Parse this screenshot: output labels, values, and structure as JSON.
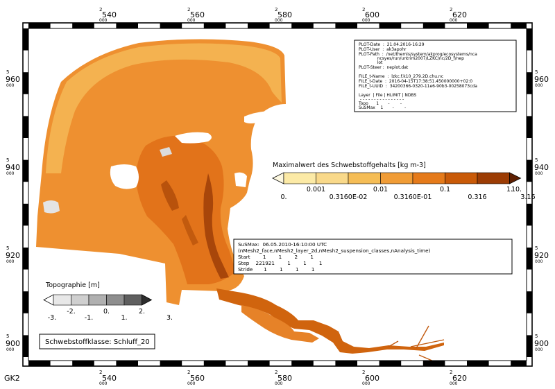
{
  "map": {
    "corner_label": "GK2",
    "x_ticks": [
      {
        "prefix": "2",
        "value": "540",
        "suffix": "000"
      },
      {
        "prefix": "2",
        "value": "560",
        "suffix": "000"
      },
      {
        "prefix": "2",
        "value": "580",
        "suffix": "000"
      },
      {
        "prefix": "2",
        "value": "600",
        "suffix": "000"
      },
      {
        "prefix": "2",
        "value": "620",
        "suffix": "000"
      }
    ],
    "y_ticks": [
      {
        "prefix": "5",
        "value": "960",
        "suffix": "000"
      },
      {
        "prefix": "5",
        "value": "940",
        "suffix": "000"
      },
      {
        "prefix": "5",
        "value": "920",
        "suffix": "000"
      },
      {
        "prefix": "5",
        "value": "900",
        "suffix": "000"
      }
    ]
  },
  "info_box": {
    "lines": [
      "PLOT-Date  :  21.04.2016-16:29",
      "PLOT-User  :  ak3apohr",
      "PLOT-Path  :  /net/themis/system/akprog/ecosystems/nca",
      "              ncsyes/run/untrim2007/LZKC/nc/2D_f/nep",
      "              lot",
      "PLOT-Steer :  neplot.dat",
      "",
      "FILE_t-Name  :  lzkc.f.k10_279.2D.chu.nc",
      "FILE_t-Date  :  2016-04-15T17:38:51.450000000+02:0",
      "FILE_t-UUID  :  34200366-0320-11e6-90b3-00258073cda",
      "",
      "Layer  | File | HLIMIT | NDBS",
      " - - - - - - - - - - - - - - - -",
      "Topo      1       -        -",
      "SuSMax    1       -        -"
    ]
  },
  "suspended_legend": {
    "title": "Maximalwert des Schwebstoffgehalts [kg m-3]",
    "colors": [
      "#fdf8e0",
      "#fceaa6",
      "#f9d98a",
      "#f5bd56",
      "#f09c36",
      "#e57a1a",
      "#c95a08",
      "#9c3c04",
      "#5e1f02"
    ],
    "labels_top": [
      "0.001",
      "0.01",
      "0.1",
      "1.",
      "10."
    ],
    "labels_bottom": [
      "0.",
      "0.3160E-02",
      "0.3160E-01",
      "0.316",
      "3.16"
    ]
  },
  "topo_legend": {
    "title": "Topographie [m]",
    "colors": [
      "#ffffff",
      "#e8e8e8",
      "#cfcfcf",
      "#b0b0b0",
      "#8e8e8e",
      "#5f5f5f",
      "#2d2d2d"
    ],
    "labels_top": [
      "-2.",
      "0.",
      "2."
    ],
    "labels_bottom": [
      "-3.",
      "-1.",
      "1.",
      "3."
    ]
  },
  "time_box": {
    "lines": [
      "SuSMax:  06.05.2010-16:10:00 UTC",
      "(nMesh2_face,nMesh2_layer_2d,nMesh2_suspension_classes,nAnalysis_time)",
      "Start        1        1        2        1",
      "Step    221921        1        1        1",
      "Stride       1        1        1        1"
    ]
  },
  "class_box": {
    "label": "Schwebstoffklasse: Schluff_20"
  }
}
